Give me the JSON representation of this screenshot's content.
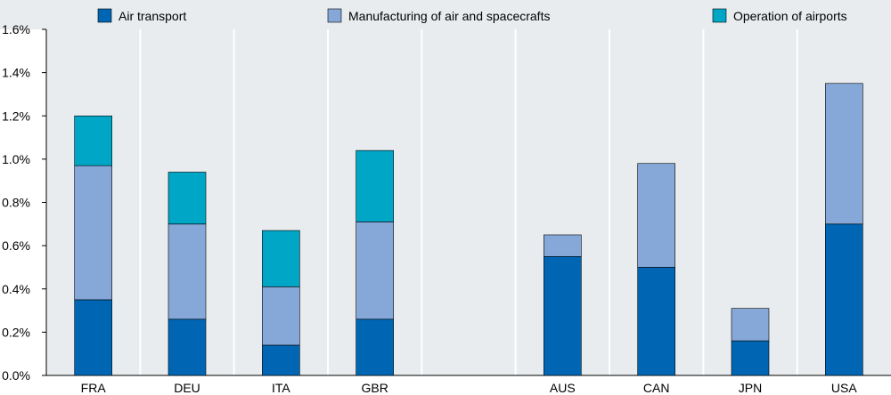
{
  "chart_data": {
    "type": "bar",
    "stacked": true,
    "categories": [
      "FRA",
      "DEU",
      "ITA",
      "GBR",
      "",
      "AUS",
      "CAN",
      "JPN",
      "USA"
    ],
    "series": [
      {
        "name": "Air transport",
        "color": "#0066b3",
        "values": [
          0.35,
          0.26,
          0.14,
          0.26,
          null,
          0.55,
          0.5,
          0.16,
          0.7
        ]
      },
      {
        "name": "Manufacturing of air and spacecrafts",
        "color": "#85a8d8",
        "values": [
          0.62,
          0.44,
          0.27,
          0.45,
          null,
          0.1,
          0.48,
          0.15,
          0.65
        ]
      },
      {
        "name": "Operation of airports",
        "color": "#00a6c6",
        "values": [
          0.23,
          0.24,
          0.26,
          0.33,
          null,
          0.0,
          0.0,
          0.0,
          0.0
        ]
      }
    ],
    "ylim": [
      0,
      1.6
    ],
    "yticks": [
      0,
      0.2,
      0.4,
      0.6,
      0.8,
      1.0,
      1.2,
      1.4,
      1.6
    ],
    "ytick_labels": [
      "0.0%",
      "0.2%",
      "0.4%",
      "0.6%",
      "0.8%",
      "1.0%",
      "1.2%",
      "1.4%",
      "1.6%"
    ],
    "legend_position": "top",
    "grid": false,
    "title": "",
    "xlabel": "",
    "ylabel": ""
  }
}
